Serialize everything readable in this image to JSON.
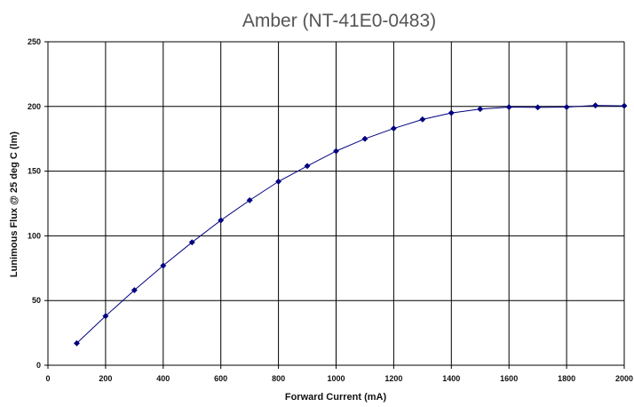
{
  "chart_data": {
    "type": "line",
    "title": "Amber (NT-41E0-0483)",
    "xlabel": "Forward Current (mA)",
    "ylabel": "Lunimous Flux @ 25 deg C (lm)",
    "xlim": [
      0,
      2000
    ],
    "ylim": [
      0,
      250
    ],
    "xticks": [
      0,
      200,
      400,
      600,
      800,
      1000,
      1200,
      1400,
      1600,
      1800,
      2000
    ],
    "yticks": [
      0,
      50,
      100,
      150,
      200,
      250
    ],
    "grid": true,
    "legend": "none",
    "series": [
      {
        "color": "#000080",
        "marker": "diamond",
        "x": [
          100,
          200,
          300,
          400,
          500,
          600,
          700,
          800,
          900,
          1000,
          1100,
          1200,
          1300,
          1400,
          1500,
          1600,
          1700,
          1800,
          1900,
          2000
        ],
        "y": [
          17,
          38,
          58,
          77,
          95,
          112,
          127.5,
          142,
          154,
          165.5,
          175,
          183,
          190,
          195,
          198,
          199.5,
          199.3,
          199.5,
          200.8,
          200.5
        ]
      }
    ]
  }
}
